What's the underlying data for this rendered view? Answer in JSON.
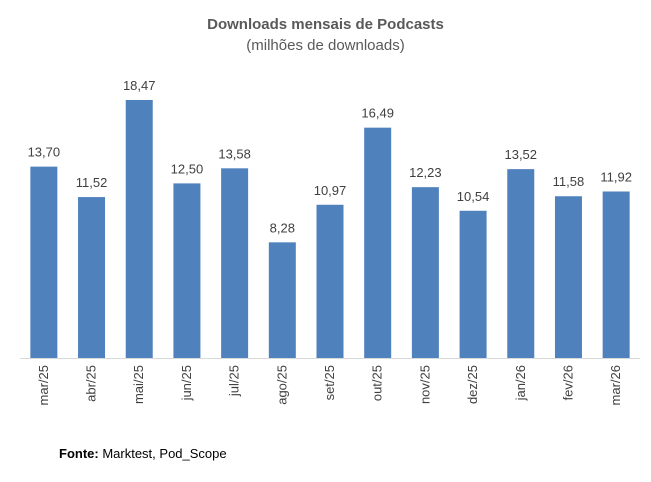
{
  "chart_data": {
    "type": "bar",
    "title": "Downloads mensais de Podcasts",
    "subtitle": "(milhões de downloads)",
    "categories": [
      "mar/25",
      "abr/25",
      "mai/25",
      "jun/25",
      "jul/25",
      "ago/25",
      "set/25",
      "out/25",
      "nov/25",
      "dez/25",
      "jan/26",
      "fev/26",
      "mar/26"
    ],
    "values": [
      13.7,
      11.52,
      18.47,
      12.5,
      13.58,
      8.28,
      10.97,
      16.49,
      12.23,
      10.54,
      13.52,
      11.58,
      11.92
    ],
    "data_labels": [
      "13,70",
      "11,52",
      "18,47",
      "12,50",
      "13,58",
      "8,28",
      "10,97",
      "16,49",
      "12,23",
      "10,54",
      "13,52",
      "11,58",
      "11,92"
    ],
    "xlabel": "",
    "ylabel": "",
    "ylim": [
      0,
      18.47
    ],
    "bar_color": "#4F81BD",
    "grid": false,
    "legend": "none"
  },
  "source": {
    "label": "Fonte:",
    "text": " Marktest, Pod_Scope"
  }
}
